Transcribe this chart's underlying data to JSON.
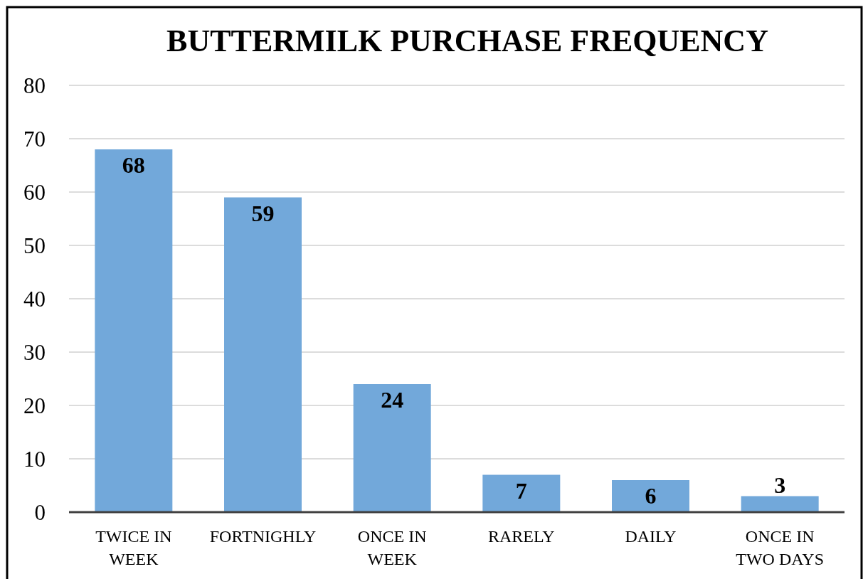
{
  "chart_data": {
    "type": "bar",
    "title": "BUTTERMILK PURCHASE FREQUENCY",
    "categories": [
      "TWICE IN WEEK",
      "FORTNIGHLY",
      "ONCE IN WEEK",
      "RARELY",
      "DAILY",
      "ONCE IN TWO DAYS"
    ],
    "values": [
      68,
      59,
      24,
      7,
      6,
      3
    ],
    "color": "#72a8da",
    "ylim": [
      0,
      80
    ],
    "yticks": [
      0,
      10,
      20,
      30,
      40,
      50,
      60,
      70,
      80
    ],
    "grid": "y",
    "data_labels": true
  }
}
